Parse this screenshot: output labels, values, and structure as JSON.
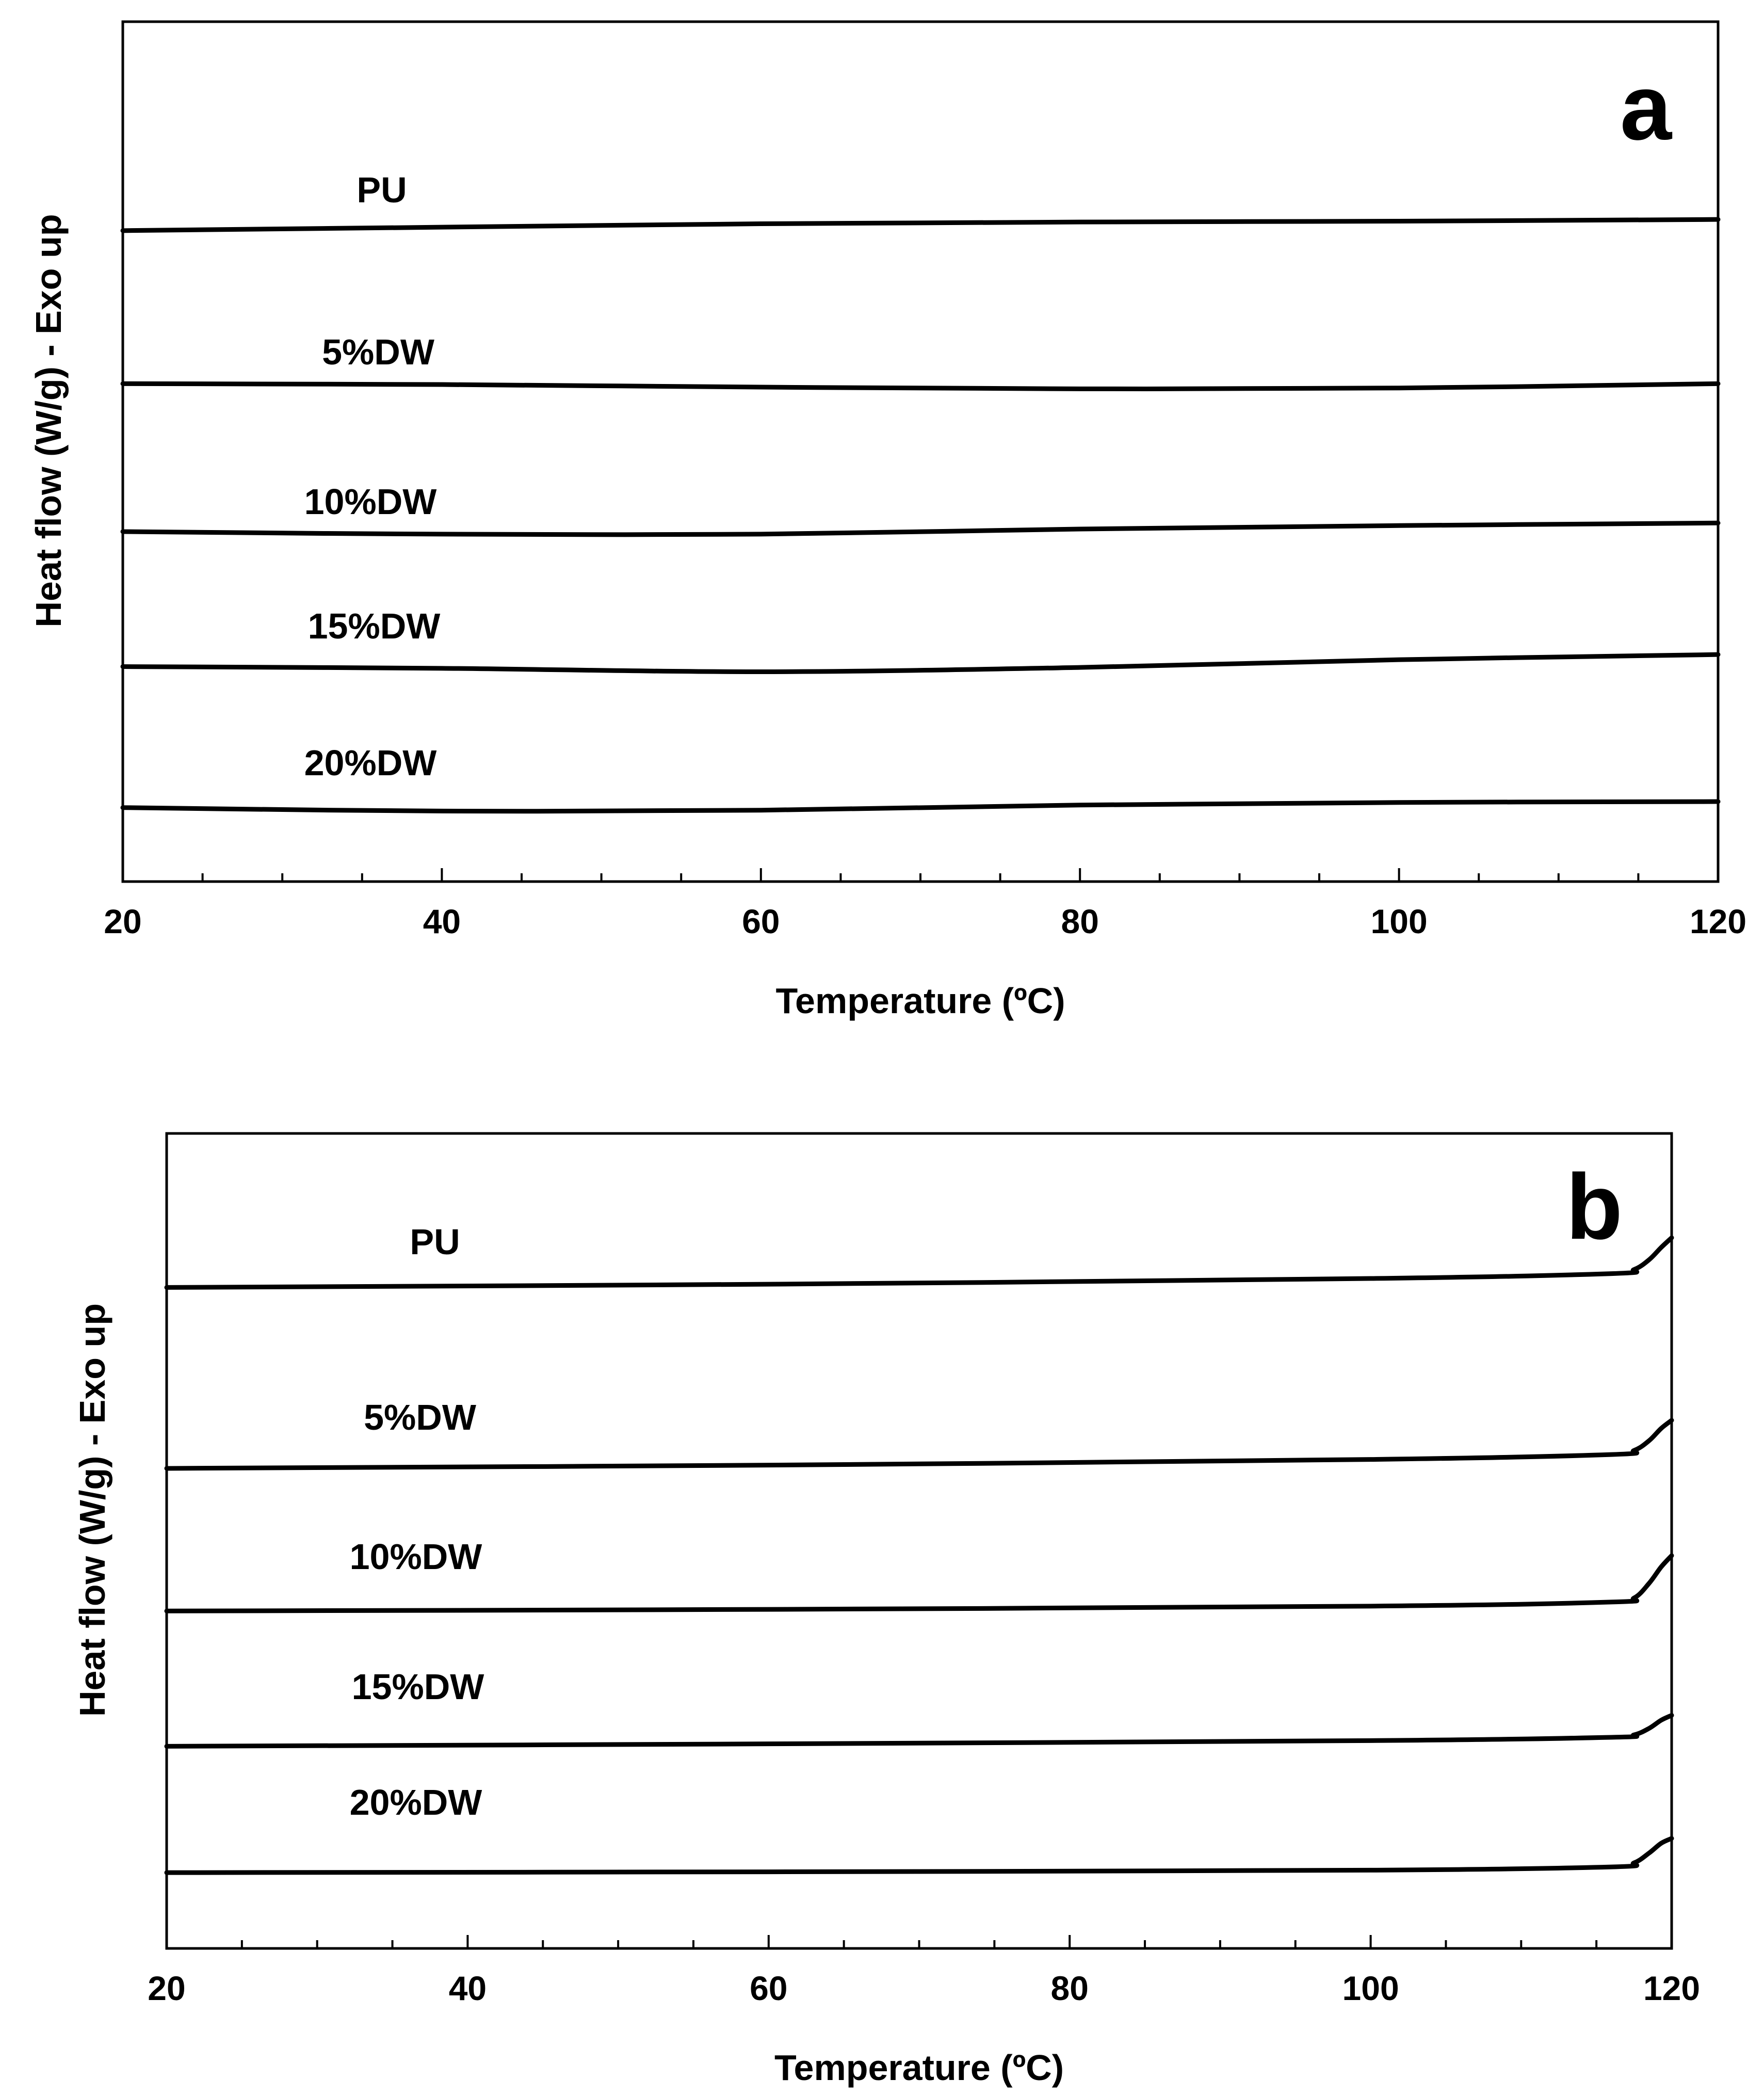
{
  "chart_data": [
    {
      "panel": "a",
      "type": "line",
      "xlabel": "Temperature (ºC)",
      "ylabel": "Heat flow (W/g) - Exo up",
      "xlim": [
        20,
        120
      ],
      "xticks": [
        "20",
        "40",
        "60",
        "80",
        "100",
        "120"
      ],
      "ylim": [
        0,
        10
      ],
      "grid": false,
      "series": [
        {
          "name": "PU",
          "x": [
            20,
            40,
            60,
            80,
            100,
            120
          ],
          "y": [
            7.57,
            7.61,
            7.65,
            7.67,
            7.68,
            7.7
          ]
        },
        {
          "name": "5%DW",
          "x": [
            20,
            40,
            60,
            80,
            100,
            120
          ],
          "y": [
            5.79,
            5.78,
            5.75,
            5.73,
            5.74,
            5.79
          ]
        },
        {
          "name": "10%DW",
          "x": [
            20,
            40,
            60,
            80,
            100,
            120
          ],
          "y": [
            4.07,
            4.04,
            4.04,
            4.1,
            4.14,
            4.17
          ]
        },
        {
          "name": "15%DW",
          "x": [
            20,
            40,
            60,
            80,
            100,
            120
          ],
          "y": [
            2.5,
            2.48,
            2.44,
            2.49,
            2.58,
            2.64
          ]
        },
        {
          "name": "20%DW",
          "x": [
            20,
            40,
            60,
            80,
            100,
            120
          ],
          "y": [
            0.86,
            0.82,
            0.83,
            0.89,
            0.92,
            0.93
          ]
        }
      ]
    },
    {
      "panel": "b",
      "type": "line",
      "xlabel": "Temperature (ºC)",
      "ylabel": "Heat flow (W/g) - Exo up",
      "xlim": [
        20,
        120
      ],
      "xticks": [
        "20",
        "40",
        "60",
        "80",
        "100",
        "120"
      ],
      "ylim": [
        0,
        10
      ],
      "grid": false,
      "series": [
        {
          "name": "PU",
          "x": [
            20,
            60,
            100,
            116,
            117.5,
            118.5,
            119.3,
            120
          ],
          "y": [
            8.11,
            8.15,
            8.22,
            8.28,
            8.33,
            8.45,
            8.6,
            8.72
          ]
        },
        {
          "name": "5%DW",
          "x": [
            20,
            60,
            100,
            116,
            117.5,
            118.5,
            119.3,
            120
          ],
          "y": [
            5.89,
            5.93,
            6.0,
            6.06,
            6.11,
            6.23,
            6.38,
            6.48
          ]
        },
        {
          "name": "10%DW",
          "x": [
            20,
            60,
            100,
            116,
            117.5,
            118.5,
            119.3,
            120
          ],
          "y": [
            4.14,
            4.16,
            4.2,
            4.25,
            4.3,
            4.48,
            4.68,
            4.82
          ]
        },
        {
          "name": "15%DW",
          "x": [
            20,
            60,
            100,
            116,
            117.5,
            118.5,
            119.3,
            120
          ],
          "y": [
            2.48,
            2.51,
            2.55,
            2.59,
            2.62,
            2.7,
            2.8,
            2.86
          ]
        },
        {
          "name": "20%DW",
          "x": [
            20,
            60,
            100,
            116,
            117.5,
            118.5,
            119.3,
            120
          ],
          "y": [
            0.93,
            0.94,
            0.96,
            1.0,
            1.05,
            1.17,
            1.29,
            1.35
          ]
        }
      ]
    }
  ]
}
